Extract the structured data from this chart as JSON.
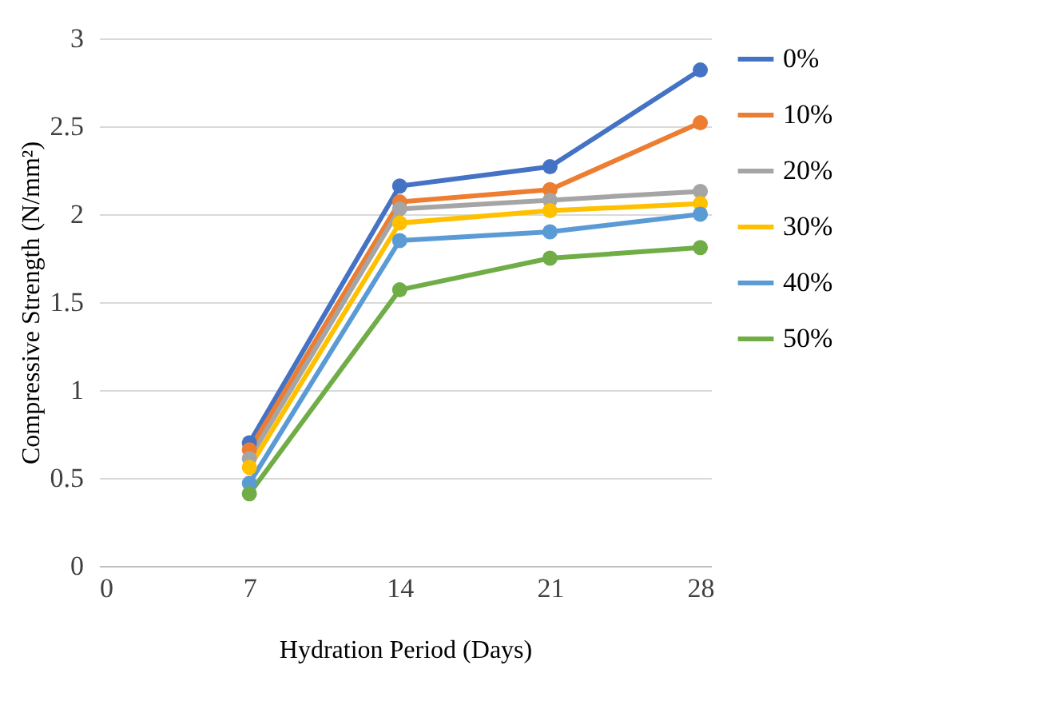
{
  "chart_data": {
    "type": "line",
    "xlabel": "Hydration Period (Days)",
    "ylabel": "Compressive Strength (N/mm²)",
    "x": [
      7,
      14,
      21,
      28
    ],
    "series": [
      {
        "name": "0%",
        "color": "#4472c4",
        "values": [
          0.7,
          2.16,
          2.27,
          2.82
        ]
      },
      {
        "name": "10%",
        "color": "#ed7d31",
        "values": [
          0.66,
          2.07,
          2.14,
          2.52
        ]
      },
      {
        "name": "20%",
        "color": "#a5a5a5",
        "values": [
          0.61,
          2.03,
          2.08,
          2.13
        ]
      },
      {
        "name": "30%",
        "color": "#ffc000",
        "values": [
          0.56,
          1.95,
          2.02,
          2.06
        ]
      },
      {
        "name": "40%",
        "color": "#5b9bd5",
        "values": [
          0.47,
          1.85,
          1.9,
          2.0
        ]
      },
      {
        "name": "50%",
        "color": "#70ad47",
        "values": [
          0.41,
          1.57,
          1.75,
          1.81
        ]
      }
    ],
    "xlim": [
      0,
      28.5
    ],
    "xticks": [
      0,
      7,
      14,
      21,
      28
    ],
    "ylim": [
      0,
      3
    ],
    "yticks": [
      0,
      0.5,
      1,
      1.5,
      2,
      2.5,
      3
    ],
    "grid": "y",
    "legend": "right",
    "marker": "circle",
    "line_style": "solid"
  }
}
